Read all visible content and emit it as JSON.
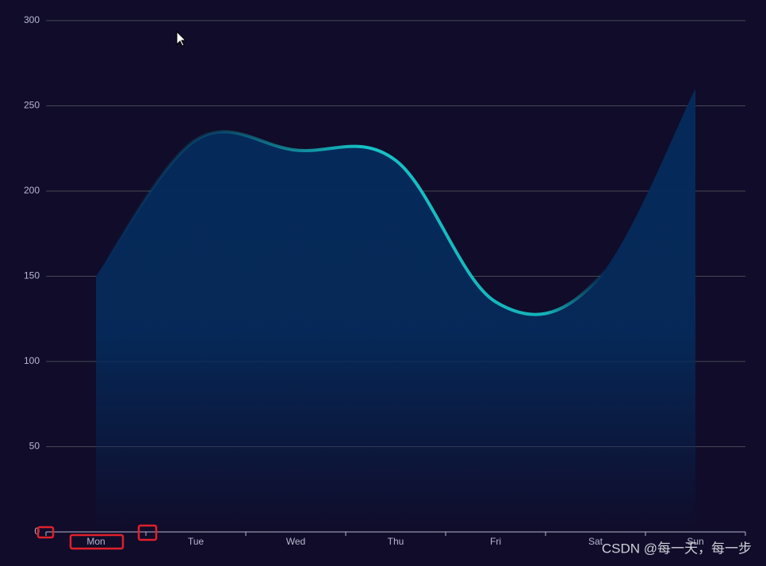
{
  "chart_data": {
    "type": "line",
    "categories": [
      "Mon",
      "Tue",
      "Wed",
      "Thu",
      "Fri",
      "Sat",
      "Sun"
    ],
    "values": [
      150,
      230,
      224,
      218,
      135,
      147,
      260
    ],
    "color": "#16c3c6",
    "area_color": "#052a5a",
    "ylim": [
      0,
      300
    ],
    "yticks": [
      0,
      50,
      100,
      150,
      200,
      250,
      300
    ],
    "grid": true,
    "smooth": true
  },
  "watermark": "CSDN @每一天，每一步"
}
